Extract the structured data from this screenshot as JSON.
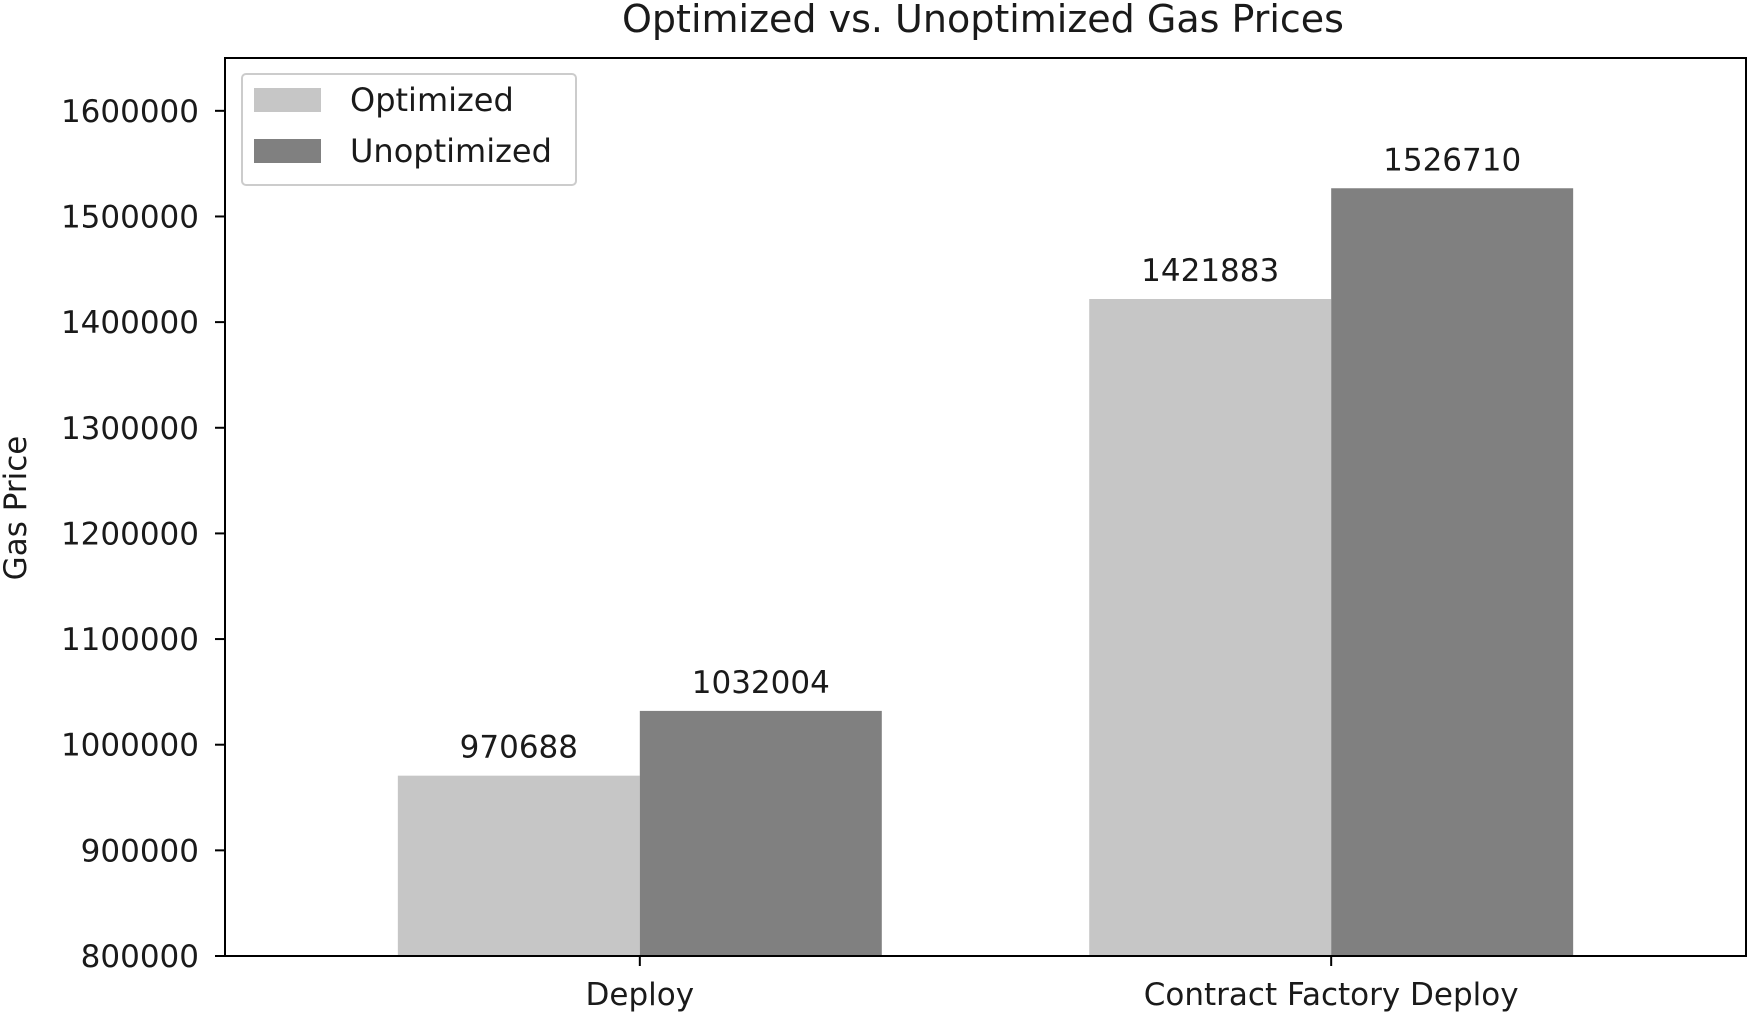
{
  "chart_data": {
    "type": "bar",
    "title": "Optimized vs. Unoptimized Gas Prices",
    "xlabel": "",
    "ylabel": "Gas Price",
    "categories": [
      "Deploy",
      "Contract Factory Deploy"
    ],
    "series": [
      {
        "name": "Optimized",
        "values": [
          970688,
          1421883
        ],
        "color": "#c6c6c6"
      },
      {
        "name": "Unoptimized",
        "values": [
          1032004,
          1526710
        ],
        "color": "#808080"
      }
    ],
    "ylim": [
      800000,
      1650000
    ],
    "yticks": [
      800000,
      900000,
      1000000,
      1100000,
      1200000,
      1300000,
      1400000,
      1500000,
      1600000
    ],
    "legend_position": "top-left",
    "grid": false,
    "data_labels": true
  }
}
